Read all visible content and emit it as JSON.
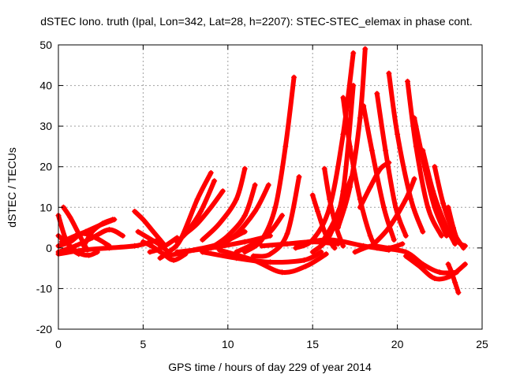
{
  "chart_data": {
    "type": "scatter",
    "title": "dSTEC Iono. truth (Ipal, Lon=342, Lat=28, h=2207): STEC-STEC_elemax in phase cont.",
    "xlabel": "GPS time / hours of day 229 of year 2014",
    "ylabel": "dSTEC  / TECUs",
    "xlim": [
      0,
      25
    ],
    "ylim": [
      -20,
      50
    ],
    "xticks": [
      0,
      5,
      10,
      15,
      20,
      25
    ],
    "yticks": [
      -20,
      -10,
      0,
      10,
      20,
      30,
      40,
      50
    ],
    "grid": true,
    "marker": "plus",
    "color": "#ff0000",
    "series": [
      {
        "x": [
          0.0,
          0.4,
          0.8,
          1.2
        ],
        "y": [
          8.0,
          2.5,
          -0.3,
          -1.5
        ]
      },
      {
        "x": [
          0.3,
          0.7,
          1.2,
          1.7
        ],
        "y": [
          10.0,
          7.5,
          3.5,
          -0.5
        ]
      },
      {
        "x": [
          0.0,
          0.6,
          1.2,
          1.8,
          2.3
        ],
        "y": [
          3.0,
          0.8,
          -1.2,
          -1.8,
          -1.0
        ]
      },
      {
        "x": [
          0.0,
          0.7,
          1.4,
          2.2,
          3.0
        ],
        "y": [
          0.5,
          1.5,
          3.5,
          2.5,
          0.5
        ]
      },
      {
        "x": [
          0.0,
          1.0,
          2.0,
          3.0,
          3.8
        ],
        "y": [
          -1.0,
          0.5,
          2.5,
          4.5,
          3.0
        ]
      },
      {
        "x": [
          0.2,
          1.0,
          1.6,
          2.4,
          3.3
        ],
        "y": [
          1.5,
          3.0,
          4.0,
          5.5,
          7.0
        ]
      },
      {
        "x": [
          1.5,
          2.0,
          2.6,
          3.2
        ],
        "y": [
          0.5,
          4.0,
          6.0,
          7.0
        ]
      },
      {
        "x": [
          0.0,
          1.5,
          3.0,
          4.5,
          5.5,
          6.0
        ],
        "y": [
          -1.5,
          -0.5,
          0.0,
          0.5,
          1.5,
          2.0
        ]
      },
      {
        "x": [
          4.5,
          5.0,
          5.5,
          6.0,
          6.3
        ],
        "y": [
          9.0,
          7.0,
          4.5,
          2.0,
          0.5
        ]
      },
      {
        "x": [
          4.7,
          5.3,
          5.9,
          6.5
        ],
        "y": [
          4.0,
          2.5,
          1.0,
          -1.0
        ]
      },
      {
        "x": [
          5.0,
          5.6,
          6.2,
          6.8,
          7.5
        ],
        "y": [
          1.5,
          0.2,
          -1.5,
          -3.0,
          -1.5
        ]
      },
      {
        "x": [
          5.4,
          5.8,
          6.3,
          7.0
        ],
        "y": [
          -1.0,
          -0.5,
          0.5,
          2.5
        ]
      },
      {
        "x": [
          6.0,
          6.5,
          7.2,
          8.2,
          9.0
        ],
        "y": [
          -2.5,
          -1.0,
          2.0,
          12.0,
          18.5
        ]
      },
      {
        "x": [
          7.0,
          7.6,
          8.4,
          9.2
        ],
        "y": [
          1.5,
          4.0,
          9.0,
          16.5
        ]
      },
      {
        "x": [
          7.5,
          8.2,
          9.0,
          9.7
        ],
        "y": [
          3.5,
          6.0,
          10.0,
          14.0
        ]
      },
      {
        "x": [
          6.4,
          8.0,
          9.5,
          11.0
        ],
        "y": [
          -2.0,
          -0.5,
          1.0,
          4.0
        ]
      },
      {
        "x": [
          8.5,
          9.5,
          10.5,
          11.0
        ],
        "y": [
          2.0,
          6.0,
          12.0,
          19.5
        ]
      },
      {
        "x": [
          9.0,
          10.0,
          11.0,
          11.6
        ],
        "y": [
          0.0,
          3.0,
          8.0,
          15.5
        ]
      },
      {
        "x": [
          9.3,
          10.4,
          11.6,
          12.4
        ],
        "y": [
          0.2,
          3.0,
          9.0,
          15.5
        ]
      },
      {
        "x": [
          7.0,
          9.0,
          11.0,
          12.5
        ],
        "y": [
          -1.0,
          0.0,
          1.5,
          3.0
        ]
      },
      {
        "x": [
          10.5,
          11.5,
          12.5,
          13.2
        ],
        "y": [
          -1.0,
          1.0,
          4.0,
          8.0
        ]
      },
      {
        "x": [
          11.0,
          12.0,
          12.8,
          13.4,
          13.9
        ],
        "y": [
          -1.0,
          2.0,
          10.0,
          25.0,
          42.0
        ]
      },
      {
        "x": [
          11.5,
          12.5,
          13.5,
          14.2
        ],
        "y": [
          -2.0,
          -1.5,
          3.5,
          17.5
        ]
      },
      {
        "x": [
          8.5,
          10.5,
          12.5,
          14.5,
          15.5
        ],
        "y": [
          -1.0,
          -2.5,
          -3.5,
          -3.0,
          -1.0
        ]
      },
      {
        "x": [
          9.5,
          11.5,
          13.2,
          14.6,
          15.8
        ],
        "y": [
          -0.5,
          -3.0,
          -6.0,
          -4.5,
          -1.5
        ]
      },
      {
        "x": [
          15.0,
          15.3,
          15.8,
          16.3
        ],
        "y": [
          13.0,
          9.0,
          3.0,
          0.0
        ]
      },
      {
        "x": [
          15.7,
          16.0,
          16.4,
          16.8
        ],
        "y": [
          19.5,
          12.0,
          5.0,
          0.5
        ]
      },
      {
        "x": [
          14.0,
          15.0,
          16.0,
          16.8,
          17.4
        ],
        "y": [
          0.0,
          2.0,
          10.0,
          28.0,
          48.0
        ]
      },
      {
        "x": [
          15.0,
          16.0,
          16.8,
          17.4
        ],
        "y": [
          -1.0,
          3.0,
          14.0,
          40.0
        ]
      },
      {
        "x": [
          15.5,
          16.2,
          16.8,
          17.3
        ],
        "y": [
          1.0,
          6.0,
          12.0,
          17.5
        ]
      },
      {
        "x": [
          16.8,
          17.2,
          17.8,
          18.4,
          18.8
        ],
        "y": [
          37.0,
          25.0,
          12.0,
          3.0,
          0.0
        ]
      },
      {
        "x": [
          16.5,
          17.2,
          17.8,
          18.1
        ],
        "y": [
          5.0,
          15.0,
          32.0,
          49.0
        ]
      },
      {
        "x": [
          18.0,
          18.5,
          19.2,
          19.8
        ],
        "y": [
          35.0,
          24.0,
          10.0,
          2.0
        ]
      },
      {
        "x": [
          18.8,
          19.3,
          19.9,
          20.5
        ],
        "y": [
          38.0,
          24.0,
          10.0,
          3.0
        ]
      },
      {
        "x": [
          17.8,
          18.4,
          19.0,
          19.5
        ],
        "y": [
          10.0,
          15.0,
          19.5,
          21.0
        ]
      },
      {
        "x": [
          19.5,
          20.0,
          20.8,
          21.5
        ],
        "y": [
          43.0,
          28.0,
          12.0,
          4.0
        ]
      },
      {
        "x": [
          20.6,
          21.1,
          21.8,
          22.6
        ],
        "y": [
          41.0,
          25.0,
          10.0,
          3.0
        ]
      },
      {
        "x": [
          18.5,
          19.5,
          20.5,
          21.0
        ],
        "y": [
          0.5,
          5.0,
          12.0,
          17.0
        ]
      },
      {
        "x": [
          21.0,
          21.6,
          22.2,
          22.9
        ],
        "y": [
          32.0,
          20.0,
          10.0,
          3.0
        ]
      },
      {
        "x": [
          21.5,
          22.1,
          22.8,
          23.4
        ],
        "y": [
          24.0,
          14.0,
          6.0,
          1.0
        ]
      },
      {
        "x": [
          22.2,
          22.7,
          23.3,
          23.9
        ],
        "y": [
          20.0,
          11.0,
          4.0,
          0.0
        ]
      },
      {
        "x": [
          23.0,
          23.3,
          23.6,
          24.0
        ],
        "y": [
          10.0,
          5.0,
          1.5,
          0.5
        ]
      },
      {
        "x": [
          19.0,
          20.5,
          21.5,
          22.5,
          23.5
        ],
        "y": [
          0.0,
          -1.0,
          -4.0,
          -6.0,
          -6.0
        ]
      },
      {
        "x": [
          20.5,
          21.3,
          22.2,
          23.1,
          24.0
        ],
        "y": [
          -2.0,
          -4.5,
          -7.5,
          -7.0,
          -4.0
        ]
      },
      {
        "x": [
          23.0,
          23.2,
          23.4,
          23.6
        ],
        "y": [
          -4.0,
          -6.0,
          -8.5,
          -11.0
        ]
      },
      {
        "x": [
          14.0,
          16.0,
          18.0,
          19.5
        ],
        "y": [
          1.0,
          2.0,
          0.5,
          -0.5
        ]
      },
      {
        "x": [
          17.5,
          18.5,
          19.5,
          20.3
        ],
        "y": [
          -1.0,
          0.5,
          0.0,
          1.0
        ]
      },
      {
        "x": [
          12.0,
          13.5,
          15.0,
          16.5
        ],
        "y": [
          0.5,
          1.0,
          1.5,
          1.0
        ]
      }
    ]
  }
}
